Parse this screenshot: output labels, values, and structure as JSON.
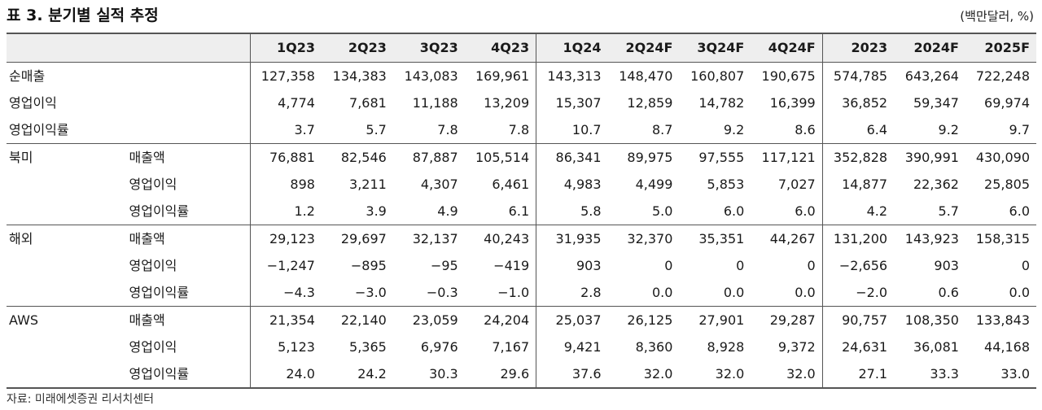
{
  "title": "표 3. 분기별 실적 추정",
  "unit": "(백만달러, %)",
  "columns": [
    "1Q23",
    "2Q23",
    "3Q23",
    "4Q23",
    "1Q24",
    "2Q24F",
    "3Q24F",
    "4Q24F",
    "2023",
    "2024F",
    "2025F"
  ],
  "rows": [
    {
      "group": "순매출",
      "sub": "",
      "values": [
        "127,358",
        "134,383",
        "143,083",
        "169,961",
        "143,313",
        "148,470",
        "160,807",
        "190,675",
        "574,785",
        "643,264",
        "722,248"
      ]
    },
    {
      "group": "영업이익",
      "sub": "",
      "values": [
        "4,774",
        "7,681",
        "11,188",
        "13,209",
        "15,307",
        "12,859",
        "14,782",
        "16,399",
        "36,852",
        "59,347",
        "69,974"
      ]
    },
    {
      "group": "영업이익률",
      "sub": "",
      "values": [
        "3.7",
        "5.7",
        "7.8",
        "7.8",
        "10.7",
        "8.7",
        "9.2",
        "8.6",
        "6.4",
        "9.2",
        "9.7"
      ]
    },
    {
      "group": "북미",
      "sub": "매출액",
      "values": [
        "76,881",
        "82,546",
        "87,887",
        "105,514",
        "86,341",
        "89,975",
        "97,555",
        "117,121",
        "352,828",
        "390,991",
        "430,090"
      ]
    },
    {
      "group": "",
      "sub": "영업이익",
      "values": [
        "898",
        "3,211",
        "4,307",
        "6,461",
        "4,983",
        "4,499",
        "5,853",
        "7,027",
        "14,877",
        "22,362",
        "25,805"
      ]
    },
    {
      "group": "",
      "sub": "영업이익률",
      "values": [
        "1.2",
        "3.9",
        "4.9",
        "6.1",
        "5.8",
        "5.0",
        "6.0",
        "6.0",
        "4.2",
        "5.7",
        "6.0"
      ]
    },
    {
      "group": "해외",
      "sub": "매출액",
      "values": [
        "29,123",
        "29,697",
        "32,137",
        "40,243",
        "31,935",
        "32,370",
        "35,351",
        "44,267",
        "131,200",
        "143,923",
        "158,315"
      ]
    },
    {
      "group": "",
      "sub": "영업이익",
      "values": [
        "−1,247",
        "−895",
        "−95",
        "−419",
        "903",
        "0",
        "0",
        "0",
        "−2,656",
        "903",
        "0"
      ]
    },
    {
      "group": "",
      "sub": "영업이익률",
      "values": [
        "−4.3",
        "−3.0",
        "−0.3",
        "−1.0",
        "2.8",
        "0.0",
        "0.0",
        "0.0",
        "−2.0",
        "0.6",
        "0.0"
      ]
    },
    {
      "group": "AWS",
      "sub": "매출액",
      "values": [
        "21,354",
        "22,140",
        "23,059",
        "24,204",
        "25,037",
        "26,125",
        "27,901",
        "29,287",
        "90,757",
        "108,350",
        "133,843"
      ]
    },
    {
      "group": "",
      "sub": "영업이익",
      "values": [
        "5,123",
        "5,365",
        "6,976",
        "7,167",
        "9,421",
        "8,360",
        "8,928",
        "9,372",
        "24,631",
        "36,081",
        "44,168"
      ]
    },
    {
      "group": "",
      "sub": "영업이익률",
      "values": [
        "24.0",
        "24.2",
        "30.3",
        "29.6",
        "37.6",
        "32.0",
        "32.0",
        "32.0",
        "27.1",
        "33.3",
        "33.0"
      ]
    }
  ],
  "source": "자료: 미래에셋증권 리서치센터"
}
